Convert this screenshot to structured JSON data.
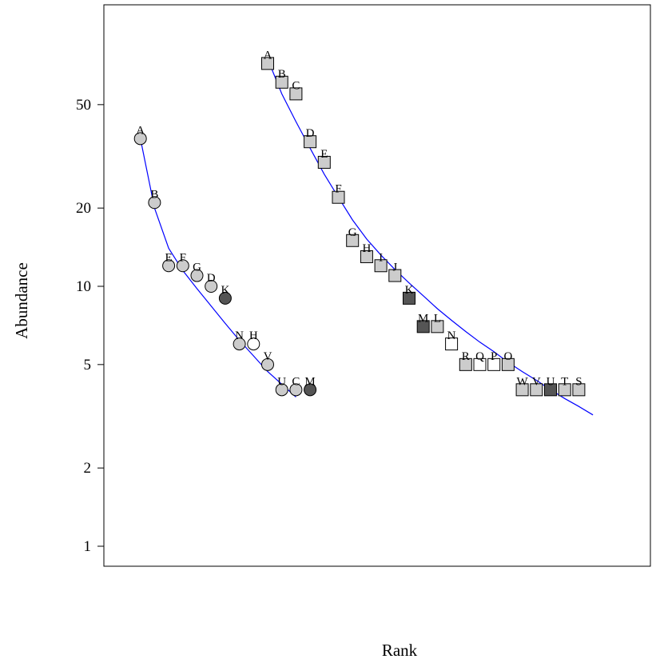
{
  "chart_data": {
    "type": "scatter",
    "xlabel": "Rank",
    "ylabel": "Abundance",
    "title": "",
    "y_scale": "log",
    "xlim": [
      0,
      37
    ],
    "ylim": [
      0.8,
      120
    ],
    "y_ticks": [
      1,
      2,
      5,
      10,
      20,
      50
    ],
    "x_ticks": [],
    "grid": false,
    "legend": "none",
    "fit_color": "#0000ff",
    "series": [
      {
        "marker": "circle",
        "fit": [
          [
            1,
            37
          ],
          [
            2,
            20
          ],
          [
            3,
            14
          ],
          [
            4,
            11.5
          ],
          [
            5,
            9.8
          ],
          [
            6,
            8.4
          ],
          [
            7,
            7.2
          ],
          [
            8,
            6.2
          ],
          [
            9,
            5.4
          ],
          [
            10,
            4.7
          ],
          [
            11,
            4.2
          ],
          [
            12,
            3.75
          ]
        ],
        "points": [
          {
            "x": 1,
            "y": 37,
            "label": "A",
            "fill": "#cccccc"
          },
          {
            "x": 2,
            "y": 21,
            "label": "B",
            "fill": "#cccccc"
          },
          {
            "x": 3,
            "y": 12,
            "label": "E",
            "fill": "#cccccc"
          },
          {
            "x": 4,
            "y": 12,
            "label": "F",
            "fill": "#cccccc"
          },
          {
            "x": 5,
            "y": 11,
            "label": "G",
            "fill": "#cccccc"
          },
          {
            "x": 6,
            "y": 10,
            "label": "D",
            "fill": "#cccccc"
          },
          {
            "x": 7,
            "y": 9,
            "label": "K",
            "fill": "#555555"
          },
          {
            "x": 8,
            "y": 6,
            "label": "N",
            "fill": "#cccccc"
          },
          {
            "x": 9,
            "y": 6,
            "label": "H",
            "fill": "#ffffff"
          },
          {
            "x": 10,
            "y": 5,
            "label": "V",
            "fill": "#cccccc"
          },
          {
            "x": 11,
            "y": 4,
            "label": "U",
            "fill": "#cccccc"
          },
          {
            "x": 12,
            "y": 4,
            "label": "C",
            "fill": "#cccccc"
          },
          {
            "x": 13,
            "y": 4,
            "label": "M",
            "fill": "#555555"
          }
        ]
      },
      {
        "marker": "square",
        "fit": [
          [
            10,
            75
          ],
          [
            11,
            55
          ],
          [
            12,
            43
          ],
          [
            13,
            34
          ],
          [
            14,
            27
          ],
          [
            15,
            22
          ],
          [
            16,
            18
          ],
          [
            17,
            15.2
          ],
          [
            18,
            13.2
          ],
          [
            19,
            11.6
          ],
          [
            20,
            10.3
          ],
          [
            21,
            9.2
          ],
          [
            22,
            8.2
          ],
          [
            23,
            7.4
          ],
          [
            24,
            6.7
          ],
          [
            25,
            6.1
          ],
          [
            26,
            5.6
          ],
          [
            27,
            5.1
          ],
          [
            28,
            4.7
          ],
          [
            29,
            4.35
          ],
          [
            30,
            4.0
          ],
          [
            31,
            3.7
          ],
          [
            32,
            3.45
          ],
          [
            33,
            3.2
          ]
        ],
        "points": [
          {
            "x": 10,
            "y": 72,
            "label": "A",
            "fill": "#cccccc"
          },
          {
            "x": 11,
            "y": 61,
            "label": "B",
            "fill": "#cccccc"
          },
          {
            "x": 12,
            "y": 55,
            "label": "C",
            "fill": "#cccccc"
          },
          {
            "x": 13,
            "y": 36,
            "label": "D",
            "fill": "#cccccc"
          },
          {
            "x": 14,
            "y": 30,
            "label": "E",
            "fill": "#cccccc"
          },
          {
            "x": 15,
            "y": 22,
            "label": "F",
            "fill": "#cccccc"
          },
          {
            "x": 16,
            "y": 15,
            "label": "G",
            "fill": "#cccccc"
          },
          {
            "x": 17,
            "y": 13,
            "label": "H",
            "fill": "#cccccc"
          },
          {
            "x": 18,
            "y": 12,
            "label": "I",
            "fill": "#cccccc"
          },
          {
            "x": 19,
            "y": 11,
            "label": "J",
            "fill": "#cccccc"
          },
          {
            "x": 20,
            "y": 9,
            "label": "K",
            "fill": "#555555"
          },
          {
            "x": 21,
            "y": 7,
            "label": "M",
            "fill": "#555555"
          },
          {
            "x": 22,
            "y": 7,
            "label": "L",
            "fill": "#cccccc"
          },
          {
            "x": 23,
            "y": 6,
            "label": "N",
            "fill": "#ffffff"
          },
          {
            "x": 24,
            "y": 5,
            "label": "R",
            "fill": "#cccccc"
          },
          {
            "x": 25,
            "y": 5,
            "label": "Q",
            "fill": "#ffffff"
          },
          {
            "x": 26,
            "y": 5,
            "label": "P",
            "fill": "#ffffff"
          },
          {
            "x": 27,
            "y": 5,
            "label": "O",
            "fill": "#cccccc"
          },
          {
            "x": 28,
            "y": 4,
            "label": "W",
            "fill": "#cccccc"
          },
          {
            "x": 29,
            "y": 4,
            "label": "V",
            "fill": "#cccccc"
          },
          {
            "x": 30,
            "y": 4,
            "label": "U",
            "fill": "#555555"
          },
          {
            "x": 31,
            "y": 4,
            "label": "T",
            "fill": "#cccccc"
          },
          {
            "x": 32,
            "y": 4,
            "label": "S",
            "fill": "#cccccc"
          }
        ]
      }
    ]
  }
}
